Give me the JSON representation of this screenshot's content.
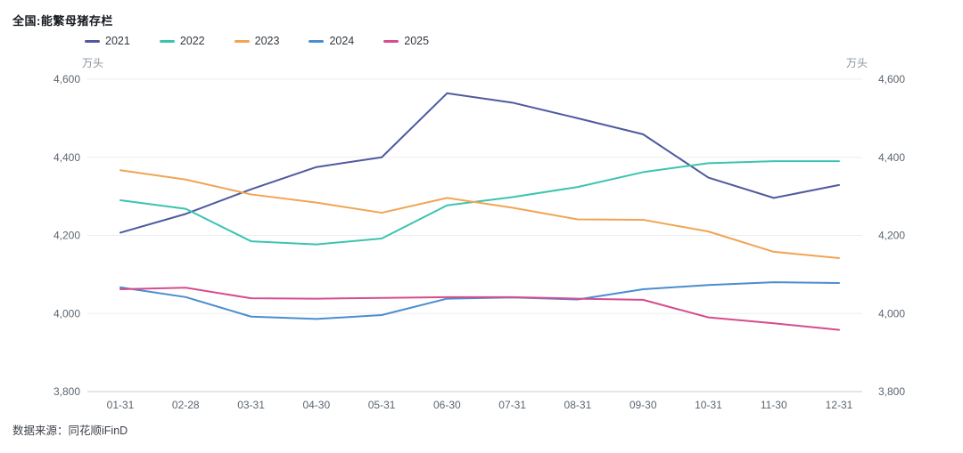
{
  "header": {
    "title": "全国:能繁母猪存栏"
  },
  "axes": {
    "unit_left": "万头",
    "unit_right": "万头"
  },
  "footer": {
    "source": "数据来源：同花顺iFinD"
  },
  "colors": {
    "grid_line": "#ecedf0",
    "axis_line": "#c9cdd4",
    "tick_text": "#5c6570"
  },
  "chart_data": {
    "type": "line",
    "title": "全国:能繁母猪存栏",
    "ylabel": "万头",
    "ylim": [
      3800,
      4600
    ],
    "y_ticks": [
      3800,
      4000,
      4200,
      4400,
      4600
    ],
    "grid": true,
    "legend_position": "top-left",
    "dual_y_axis": true,
    "categories": [
      "01-31",
      "02-28",
      "03-31",
      "04-30",
      "05-31",
      "06-30",
      "07-31",
      "08-31",
      "09-30",
      "10-31",
      "11-30",
      "12-31"
    ],
    "series": [
      {
        "name": "2021",
        "color": "#4f5a9d",
        "values": [
          4207,
          4255,
          4318,
          4375,
          4400,
          4564,
          4540,
          4500,
          4459,
          4348,
          4296,
          4329
        ]
      },
      {
        "name": "2022",
        "color": "#3cc3b0",
        "values": [
          4290,
          4268,
          4185,
          4177,
          4192,
          4277,
          4298,
          4324,
          4362,
          4385,
          4390,
          4390
        ]
      },
      {
        "name": "2023",
        "color": "#f1a454",
        "values": [
          4367,
          4343,
          4305,
          4284,
          4258,
          4296,
          4271,
          4241,
          4240,
          4210,
          4158,
          4142
        ]
      },
      {
        "name": "2024",
        "color": "#4a8dd0",
        "values": [
          4067,
          4042,
          3992,
          3986,
          3996,
          4038,
          4041,
          4036,
          4062,
          4073,
          4080,
          4078
        ]
      },
      {
        "name": "2025",
        "color": "#d64c8d",
        "values": [
          4062,
          4066,
          4039,
          4038,
          4040,
          4042,
          4042,
          4038,
          4035,
          3990,
          3975,
          3958
        ]
      }
    ]
  }
}
